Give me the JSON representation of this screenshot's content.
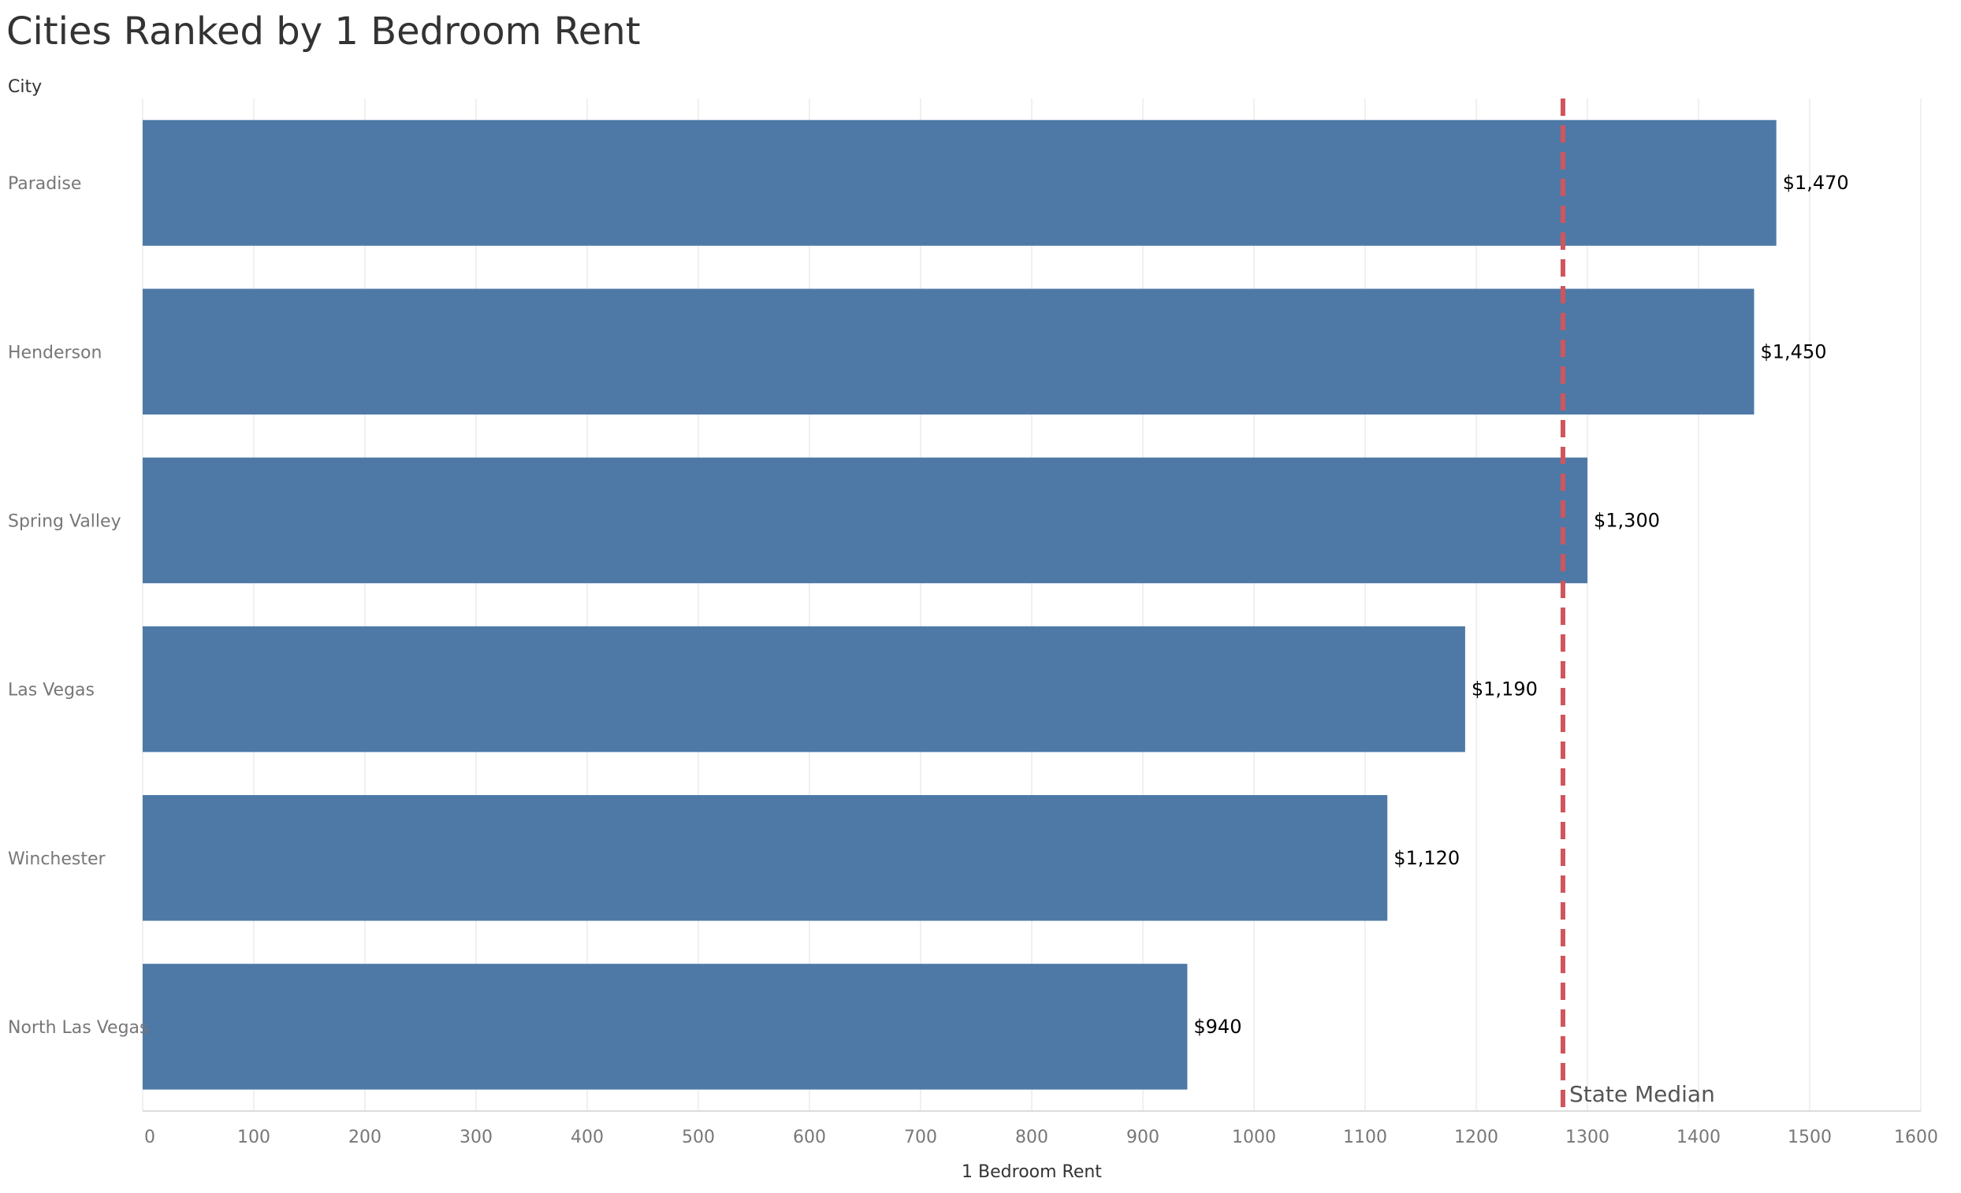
{
  "chart_data": {
    "type": "bar",
    "orientation": "horizontal",
    "title": "Cities Ranked by 1 Bedroom Rent",
    "category_axis_label": "City",
    "xlabel": "1 Bedroom Rent",
    "categories": [
      "Paradise",
      "Henderson",
      "Spring Valley",
      "Las Vegas",
      "Winchester",
      "North Las Vegas"
    ],
    "values": [
      1470,
      1450,
      1300,
      1190,
      1120,
      940
    ],
    "value_labels": [
      "$1,470",
      "$1,450",
      "$1,300",
      "$1,190",
      "$1,120",
      "$940"
    ],
    "xlim": [
      0,
      1600
    ],
    "x_ticks": [
      0,
      100,
      200,
      300,
      400,
      500,
      600,
      700,
      800,
      900,
      1000,
      1100,
      1200,
      1300,
      1400,
      1500,
      1600
    ],
    "grid": true,
    "reference_line": {
      "label": "State Median",
      "value": 1278,
      "style": "dashed",
      "color": "#d0555c"
    },
    "bar_color": "#4e79a7"
  }
}
